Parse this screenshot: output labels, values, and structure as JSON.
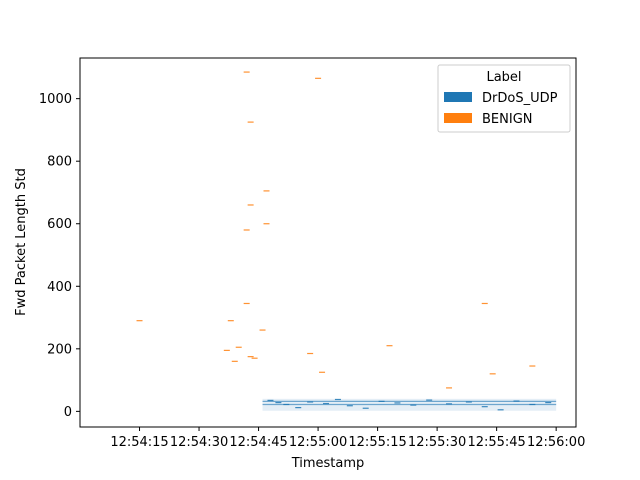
{
  "chart_data": {
    "type": "scatter",
    "title": "",
    "xlabel": "Timestamp",
    "ylabel": "Fwd Packet Length Std",
    "x_ticks": [
      "12:54:15",
      "12:54:30",
      "12:54:45",
      "12:55:00",
      "12:55:15",
      "12:55:30",
      "12:55:45",
      "12:56:00"
    ],
    "y_ticks": [
      "0",
      "200",
      "400",
      "600",
      "800",
      "1000"
    ],
    "xlim": [
      "12:54:00",
      "12:56:05"
    ],
    "ylim": [
      -50,
      1130
    ],
    "grid": false,
    "legend": {
      "title": "Label",
      "placement": "top-right",
      "entries": [
        {
          "name": "DrDoS_UDP",
          "color": "#1f77b4"
        },
        {
          "name": "BENIGN",
          "color": "#ff7f0e"
        }
      ]
    },
    "series": [
      {
        "name": "DrDoS_UDP",
        "color": "#1f77b4",
        "band": {
          "x_start": "12:54:46",
          "x_end": "12:56:00",
          "y_min": 2,
          "y_max": 40
        },
        "points": [
          {
            "x": "12:54:48",
            "y": 35
          },
          {
            "x": "12:54:50",
            "y": 28
          },
          {
            "x": "12:54:52",
            "y": 22
          },
          {
            "x": "12:54:55",
            "y": 12
          },
          {
            "x": "12:54:58",
            "y": 30
          },
          {
            "x": "12:55:02",
            "y": 25
          },
          {
            "x": "12:55:05",
            "y": 38
          },
          {
            "x": "12:55:08",
            "y": 18
          },
          {
            "x": "12:55:12",
            "y": 10
          },
          {
            "x": "12:55:16",
            "y": 32
          },
          {
            "x": "12:55:20",
            "y": 27
          },
          {
            "x": "12:55:24",
            "y": 20
          },
          {
            "x": "12:55:28",
            "y": 36
          },
          {
            "x": "12:55:33",
            "y": 24
          },
          {
            "x": "12:55:38",
            "y": 30
          },
          {
            "x": "12:55:42",
            "y": 15
          },
          {
            "x": "12:55:46",
            "y": 5
          },
          {
            "x": "12:55:50",
            "y": 33
          },
          {
            "x": "12:55:54",
            "y": 22
          },
          {
            "x": "12:55:58",
            "y": 28
          }
        ]
      },
      {
        "name": "BENIGN",
        "color": "#ff7f0e",
        "points": [
          {
            "x": "12:54:15",
            "y": 290
          },
          {
            "x": "12:54:37",
            "y": 195
          },
          {
            "x": "12:54:38",
            "y": 290
          },
          {
            "x": "12:54:39",
            "y": 160
          },
          {
            "x": "12:54:40",
            "y": 205
          },
          {
            "x": "12:54:42",
            "y": 580
          },
          {
            "x": "12:54:42",
            "y": 345
          },
          {
            "x": "12:54:42",
            "y": 1085
          },
          {
            "x": "12:54:43",
            "y": 175
          },
          {
            "x": "12:54:43",
            "y": 925
          },
          {
            "x": "12:54:43",
            "y": 660
          },
          {
            "x": "12:54:44",
            "y": 170
          },
          {
            "x": "12:54:46",
            "y": 260
          },
          {
            "x": "12:54:47",
            "y": 600
          },
          {
            "x": "12:54:47",
            "y": 705
          },
          {
            "x": "12:54:58",
            "y": 185
          },
          {
            "x": "12:55:00",
            "y": 1065
          },
          {
            "x": "12:55:01",
            "y": 125
          },
          {
            "x": "12:55:18",
            "y": 210
          },
          {
            "x": "12:55:33",
            "y": 75
          },
          {
            "x": "12:55:42",
            "y": 345
          },
          {
            "x": "12:55:44",
            "y": 120
          },
          {
            "x": "12:55:54",
            "y": 145
          }
        ]
      }
    ]
  }
}
